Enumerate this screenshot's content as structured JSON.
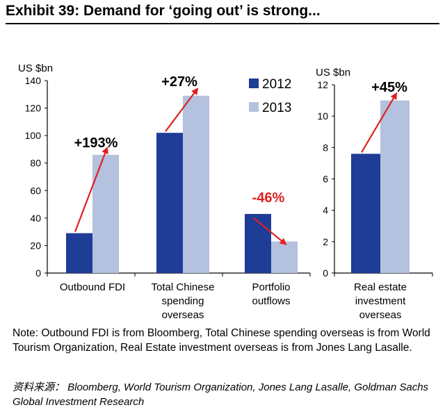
{
  "title": "Exhibit 39: Demand for ‘going out’ is strong...",
  "chart_data": [
    {
      "type": "bar",
      "ylabel": "US $bn",
      "ylim": [
        0,
        140
      ],
      "yticks": [
        "0",
        "20",
        "40",
        "60",
        "80",
        "100",
        "120",
        "140"
      ],
      "categories": [
        {
          "lines": [
            "Outbound FDI"
          ]
        },
        {
          "lines": [
            "Total Chinese",
            "spending",
            "overseas"
          ]
        },
        {
          "lines": [
            "Portfolio",
            "outflows"
          ]
        }
      ],
      "series": [
        {
          "name": "2012",
          "color": "#1f3c96",
          "values": [
            29,
            102,
            43
          ]
        },
        {
          "name": "2013",
          "color": "#b4c1df",
          "values": [
            86,
            129,
            23
          ]
        }
      ],
      "annotations": [
        {
          "text": "+193%",
          "color": "#000000"
        },
        {
          "text": "+27%",
          "color": "#000000"
        },
        {
          "text": "-46%",
          "color": "#e02020"
        }
      ],
      "legend_position": "top-right"
    },
    {
      "type": "bar",
      "ylabel": "US $bn",
      "ylim": [
        0,
        12
      ],
      "yticks": [
        "0",
        "2",
        "4",
        "6",
        "8",
        "10",
        "12"
      ],
      "categories": [
        {
          "lines": [
            "Real estate",
            "investment",
            "overseas"
          ]
        }
      ],
      "series": [
        {
          "name": "2012",
          "color": "#1f3c96",
          "values": [
            7.6
          ]
        },
        {
          "name": "2013",
          "color": "#b4c1df",
          "values": [
            11
          ]
        }
      ],
      "annotations": [
        {
          "text": "+45%",
          "color": "#000000"
        }
      ]
    }
  ],
  "arrow_color": "#e02020",
  "note": "Note: Outbound FDI is from Bloomberg, Total Chinese spending overseas is from World Tourism Organization, Real Estate investment overseas is from Jones Lang Lasalle.",
  "sources": "资料来源： Bloomberg, World Tourism Organization, Jones Lang Lasalle, Goldman Sachs Global Investment Research"
}
